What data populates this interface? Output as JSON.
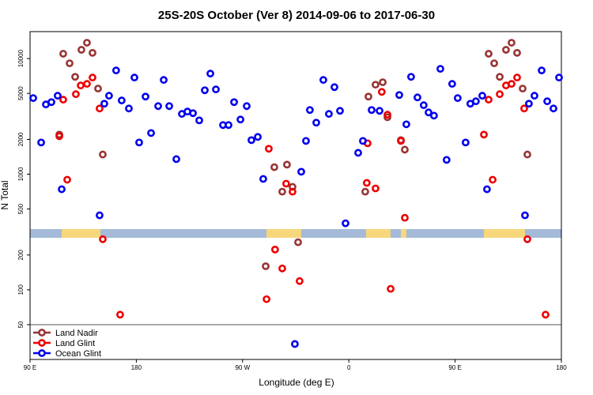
{
  "chart_data": {
    "type": "scatter",
    "title": "25S-20S October (Ver 8)   2014-09-06 to 2017-06-30",
    "x_label": "Longitude (deg E)",
    "y_label": "N Total",
    "xlim": [
      90,
      540
    ],
    "xticks": [
      {
        "value": 90,
        "label": "90 E"
      },
      180,
      {
        "value": 270,
        "label": "90 W"
      },
      {
        "value": 360,
        "label": "0"
      },
      {
        "value": 450,
        "label": "90 E"
      },
      {
        "value": 540,
        "label": "180"
      }
    ],
    "ylim": [
      25,
      17100
    ],
    "yticks": [
      50,
      100,
      200,
      500,
      1000,
      2000,
      5000,
      10000
    ],
    "log_y": true,
    "legend_position": "bottom-left",
    "series": [
      {
        "name": "Land Nadir",
        "color": "#993333",
        "x": [
          118.1,
          123.5,
          128.2,
          133.5,
          138.2,
          142.9,
          147.6,
          151.6,
          114.8,
          376.6,
          382.6,
          388.7,
          296.9,
          303.6,
          307.6,
          312.3,
          317.0,
          289.6,
          373.9,
          392.7,
          404.1,
          407.4,
          478.4,
          483.1,
          487.8,
          493.1,
          497.8,
          502.5,
          507.2,
          511.2
        ],
        "values": [
          11000,
          9100,
          6950,
          11900,
          13700,
          11200,
          5500,
          1480,
          2200,
          4690,
          5940,
          6240,
          1150,
          706,
          1210,
          777,
          258,
          160,
          706,
          3110,
          1970,
          1630,
          11000,
          9100,
          6950,
          11900,
          13700,
          11200,
          5500,
          1480
        ]
      },
      {
        "name": "Land Glint",
        "color": "#ee0000",
        "x": [
          118.1,
          121.5,
          114.8,
          128.8,
          132.9,
          138.2,
          142.9,
          148.9,
          151.6,
          166.3,
          292.2,
          297.5,
          303.6,
          306.9,
          312.3,
          318.3,
          290.3,
          375.2,
          375.9,
          382.6,
          387.9,
          392.7,
          404.1,
          407.4,
          395.4,
          474.4,
          478.4,
          481.8,
          487.8,
          493.1,
          497.8,
          502.5,
          508.5,
          511.2,
          526.6
        ],
        "values": [
          4410,
          896,
          2130,
          4920,
          5850,
          6040,
          6850,
          3700,
          274,
          61,
          1660,
          223,
          153,
          828,
          706,
          119,
          83,
          841,
          1850,
          753,
          5150,
          3270,
          1940,
          420,
          102,
          2200,
          4410,
          896,
          4920,
          5850,
          6040,
          6850,
          3700,
          274,
          61
        ]
      },
      {
        "name": "Ocean Glint",
        "color": "#0000ee",
        "x": [
          92.7,
          99.4,
          103.4,
          108.1,
          113.4,
          116.8,
          148.9,
          152.9,
          156.9,
          162.9,
          167.6,
          173.7,
          178.4,
          182.4,
          187.8,
          192.5,
          198.5,
          203.2,
          207.9,
          213.9,
          218.6,
          223.3,
          228.0,
          233.3,
          238.0,
          242.7,
          247.4,
          253.4,
          258.1,
          262.8,
          268.2,
          273.5,
          277.5,
          282.9,
          287.5,
          319.7,
          323.7,
          314.3,
          327.0,
          332.4,
          338.4,
          343.1,
          347.8,
          352.5,
          357.2,
          367.9,
          371.9,
          379.3,
          386.0,
          402.7,
          408.7,
          412.7,
          418.1,
          423.4,
          427.5,
          432.1,
          437.5,
          442.8,
          447.5,
          452.2,
          458.9,
          462.9,
          467.6,
          473.0,
          477.0,
          509.2,
          512.5,
          517.2,
          523.3,
          528.0,
          533.3,
          538.0
        ],
        "values": [
          4550,
          1880,
          4010,
          4200,
          4770,
          741,
          441,
          4070,
          4770,
          7890,
          4340,
          3700,
          6850,
          1880,
          4690,
          2270,
          3880,
          6530,
          3880,
          1350,
          3320,
          3480,
          3370,
          2920,
          5320,
          7410,
          5410,
          2660,
          2660,
          4200,
          2970,
          3880,
          1970,
          2100,
          910,
          1050,
          1940,
          34,
          3590,
          2790,
          6530,
          3320,
          5660,
          3530,
          376,
          1530,
          1940,
          3590,
          3530,
          4840,
          2700,
          6950,
          4610,
          3950,
          3420,
          3210,
          8150,
          1330,
          6040,
          4550,
          1880,
          4070,
          4270,
          4770,
          741,
          441,
          4070,
          4770,
          7890,
          4270,
          3700,
          6850
        ]
      }
    ]
  }
}
